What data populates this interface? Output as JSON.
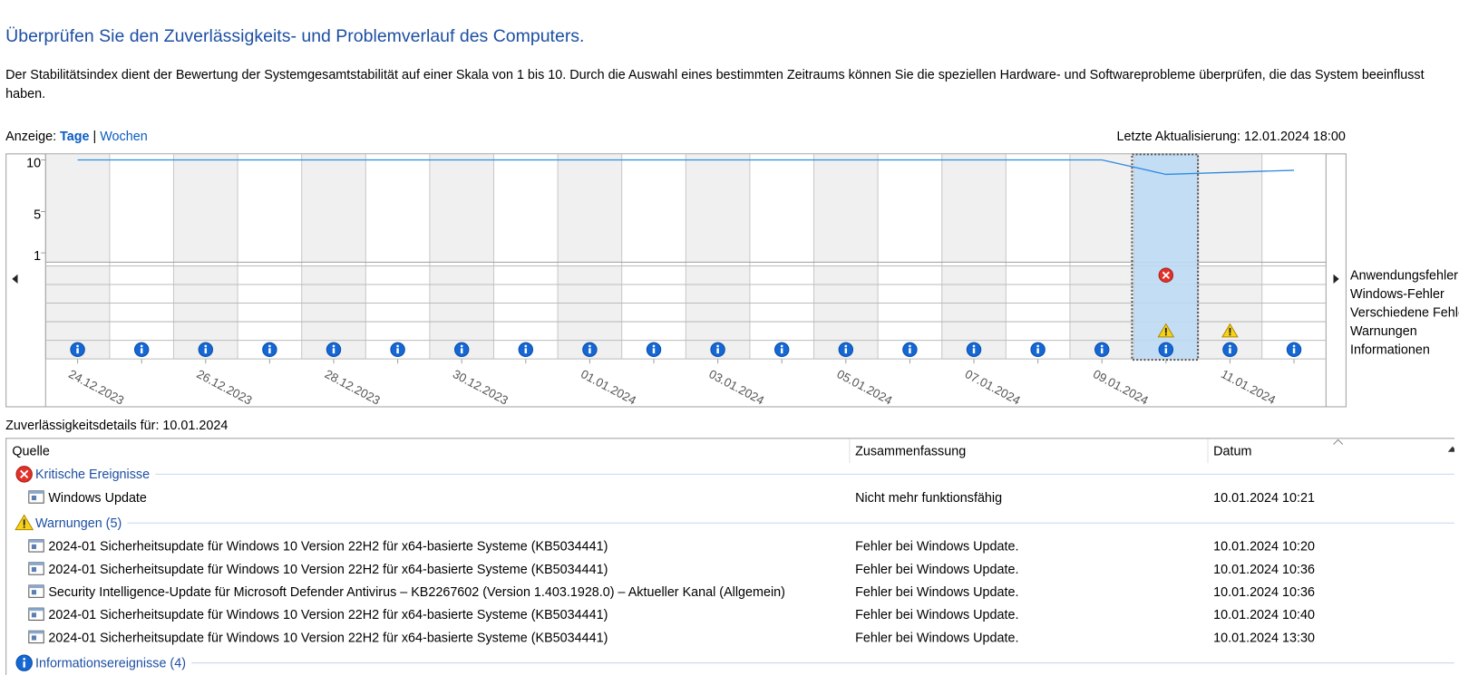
{
  "header": {
    "title": "Überprüfen Sie den Zuverlässigkeits- und Problemverlauf des Computers.",
    "description": "Der Stabilitätsindex dient der Bewertung der Systemgesamtstabilität auf einer Skala von 1 bis 10. Durch die Auswahl eines bestimmten Zeitraums können Sie die speziellen Hardware- und Softwareprobleme überprüfen, die das System beeinflusst haben."
  },
  "view": {
    "label": "Anzeige:",
    "options": [
      "Tage",
      "Wochen"
    ],
    "separator": "|"
  },
  "last_update": "Letzte Aktualisierung: 12.01.2024 18:00",
  "stability_chart": {
    "ylim": [
      1,
      10
    ],
    "yticks": [
      10,
      5,
      1
    ],
    "x_labels": [
      "24.12.2023",
      null,
      "26.12.2023",
      null,
      "28.12.2023",
      null,
      "30.12.2023",
      null,
      "01.01.2024",
      null,
      "03.01.2024",
      null,
      "05.01.2024",
      null,
      "07.01.2024",
      null,
      "09.01.2024",
      null,
      "11.01.2024",
      null
    ],
    "stability": [
      10,
      10,
      10,
      10,
      10,
      10,
      10,
      10,
      10,
      10,
      10,
      10,
      10,
      10,
      10,
      10,
      10,
      8.6,
      8.8,
      9.0
    ],
    "selected": 17,
    "event_rows": [
      "Anwendungsfehler",
      "Windows-Fehler",
      "Verschiedene Fehle",
      "Warnungen",
      "Informationen"
    ],
    "event_days": [
      [
        17
      ],
      [],
      [],
      [
        17,
        18
      ],
      [
        0,
        1,
        2,
        3,
        4,
        5,
        6,
        7,
        8,
        9,
        10,
        11,
        12,
        13,
        14,
        15,
        16,
        17,
        18,
        19
      ]
    ]
  },
  "details": {
    "label": "Zuverlässigkeitsdetails für: 10.01.2024",
    "columns": [
      "Quelle",
      "Zusammenfassung",
      "Datum"
    ],
    "groups": [
      {
        "title": "Kritische Ereignisse",
        "icon": "error",
        "rows": [
          [
            "Windows Update",
            "Nicht mehr funktionsfähig",
            "10.01.2024 10:21"
          ]
        ]
      },
      {
        "title": "Warnungen (5)",
        "icon": "warning",
        "rows": [
          [
            "2024-01 Sicherheitsupdate für Windows 10 Version 22H2 für x64-basierte Systeme (KB5034441)",
            "Fehler bei Windows Update.",
            "10.01.2024 10:20"
          ],
          [
            "2024-01 Sicherheitsupdate für Windows 10 Version 22H2 für x64-basierte Systeme (KB5034441)",
            "Fehler bei Windows Update.",
            "10.01.2024 10:36"
          ],
          [
            "Security Intelligence-Update für Microsoft Defender Antivirus – KB2267602 (Version 1.403.1928.0) – Aktueller Kanal (Allgemein)",
            "Fehler bei Windows Update.",
            "10.01.2024 10:36"
          ],
          [
            "2024-01 Sicherheitsupdate für Windows 10 Version 22H2 für x64-basierte Systeme (KB5034441)",
            "Fehler bei Windows Update.",
            "10.01.2024 10:40"
          ],
          [
            "2024-01 Sicherheitsupdate für Windows 10 Version 22H2 für x64-basierte Systeme (KB5034441)",
            "Fehler bei Windows Update.",
            "10.01.2024 13:30"
          ]
        ]
      },
      {
        "title": "Informationsereignisse (4)",
        "icon": "info",
        "rows": []
      }
    ]
  }
}
